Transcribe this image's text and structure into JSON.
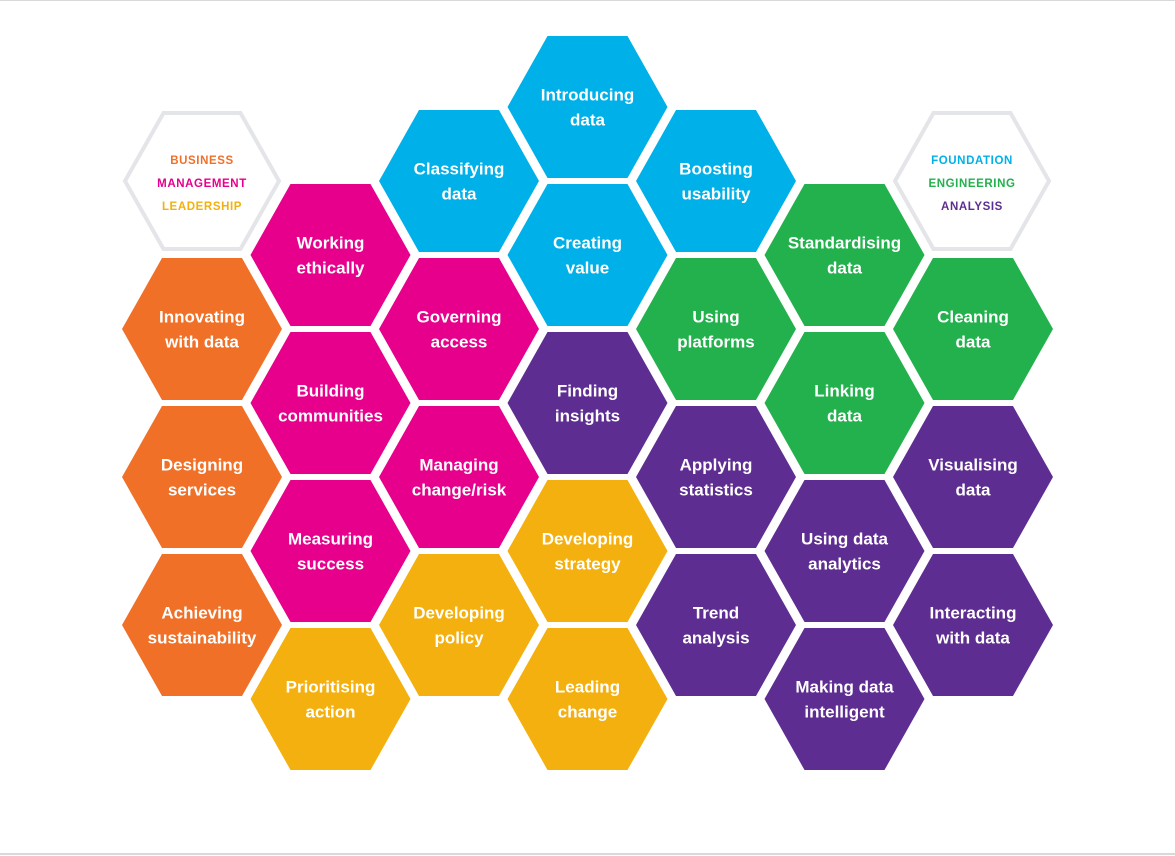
{
  "legends": {
    "left": [
      {
        "text": "BUSINESS",
        "color": "#f07028"
      },
      {
        "text": "MANAGEMENT",
        "color": "#e6008c"
      },
      {
        "text": "LEADERSHIP",
        "color": "#f4b00e"
      }
    ],
    "right": [
      {
        "text": "FOUNDATION",
        "color": "#00b0e8"
      },
      {
        "text": "ENGINEERING",
        "color": "#22b14c"
      },
      {
        "text": "ANALYSIS",
        "color": "#5e2d91"
      }
    ],
    "border_color": "#e3e5e8"
  },
  "colors": {
    "business": "#f07028",
    "management": "#e6008c",
    "leadership": "#f4b00e",
    "foundation": "#00b0e8",
    "engineering": "#22b14c",
    "analysis": "#5e2d91"
  },
  "cells": [
    {
      "col": 0,
      "row": 2,
      "category": "business",
      "lines": [
        "Innovating",
        "with data"
      ]
    },
    {
      "col": 0,
      "row": 4,
      "category": "business",
      "lines": [
        "Designing",
        "services"
      ]
    },
    {
      "col": 0,
      "row": 6,
      "category": "business",
      "lines": [
        "Achieving",
        "sustainability"
      ]
    },
    {
      "col": 1,
      "row": 1,
      "category": "management",
      "lines": [
        "Working",
        "ethically"
      ]
    },
    {
      "col": 1,
      "row": 3,
      "category": "management",
      "lines": [
        "Building",
        "communities"
      ]
    },
    {
      "col": 1,
      "row": 5,
      "category": "management",
      "lines": [
        "Measuring",
        "success"
      ]
    },
    {
      "col": 1,
      "row": 7,
      "category": "leadership",
      "lines": [
        "Prioritising",
        "action"
      ]
    },
    {
      "col": 2,
      "row": 0,
      "category": "foundation",
      "lines": [
        "Classifying",
        "data"
      ]
    },
    {
      "col": 2,
      "row": 2,
      "category": "management",
      "lines": [
        "Governing",
        "access"
      ]
    },
    {
      "col": 2,
      "row": 4,
      "category": "management",
      "lines": [
        "Managing",
        "change/risk"
      ]
    },
    {
      "col": 2,
      "row": 6,
      "category": "leadership",
      "lines": [
        "Developing",
        "policy"
      ]
    },
    {
      "col": 3,
      "row": -1,
      "category": "foundation",
      "lines": [
        "Introducing",
        "data"
      ]
    },
    {
      "col": 3,
      "row": 1,
      "category": "foundation",
      "lines": [
        "Creating",
        "value"
      ]
    },
    {
      "col": 3,
      "row": 3,
      "category": "analysis",
      "lines": [
        "Finding",
        "insights"
      ]
    },
    {
      "col": 3,
      "row": 5,
      "category": "leadership",
      "lines": [
        "Developing",
        "strategy"
      ]
    },
    {
      "col": 3,
      "row": 7,
      "category": "leadership",
      "lines": [
        "Leading",
        "change"
      ]
    },
    {
      "col": 4,
      "row": 0,
      "category": "foundation",
      "lines": [
        "Boosting",
        "usability"
      ]
    },
    {
      "col": 4,
      "row": 2,
      "category": "engineering",
      "lines": [
        "Using",
        "platforms"
      ]
    },
    {
      "col": 4,
      "row": 4,
      "category": "analysis",
      "lines": [
        "Applying",
        "statistics"
      ]
    },
    {
      "col": 4,
      "row": 6,
      "category": "analysis",
      "lines": [
        "Trend",
        "analysis"
      ]
    },
    {
      "col": 5,
      "row": 1,
      "category": "engineering",
      "lines": [
        "Standardising",
        "data"
      ]
    },
    {
      "col": 5,
      "row": 3,
      "category": "engineering",
      "lines": [
        "Linking",
        "data"
      ]
    },
    {
      "col": 5,
      "row": 5,
      "category": "analysis",
      "lines": [
        "Using data",
        "analytics"
      ]
    },
    {
      "col": 5,
      "row": 7,
      "category": "analysis",
      "lines": [
        "Making data",
        "intelligent"
      ]
    },
    {
      "col": 6,
      "row": 2,
      "category": "engineering",
      "lines": [
        "Cleaning",
        "data"
      ]
    },
    {
      "col": 6,
      "row": 4,
      "category": "analysis",
      "lines": [
        "Visualising",
        "data"
      ]
    },
    {
      "col": 6,
      "row": 6,
      "category": "analysis",
      "lines": [
        "Interacting",
        "with data"
      ]
    }
  ]
}
